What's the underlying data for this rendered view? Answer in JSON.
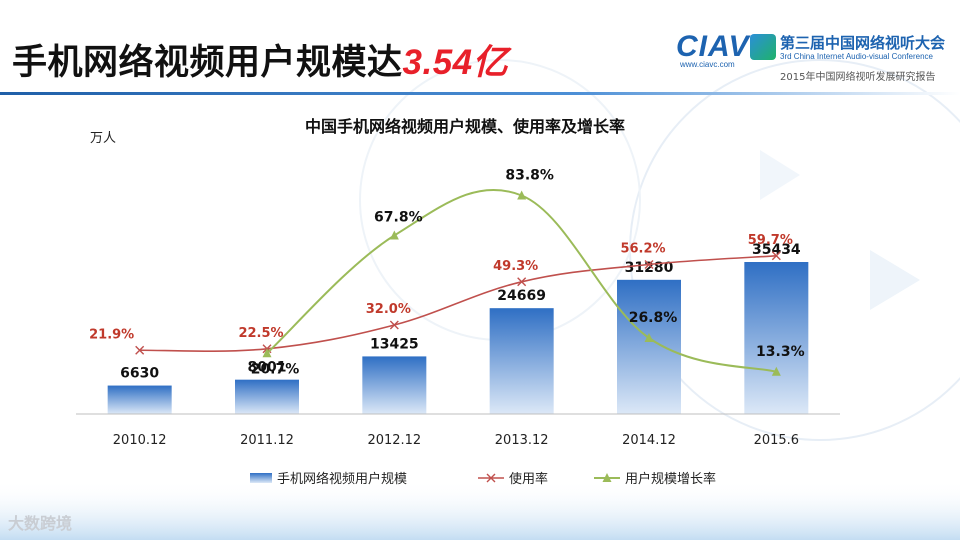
{
  "slide": {
    "title_main": "手机网络视频用户规模达",
    "title_highlight": "3.54亿"
  },
  "logo": {
    "mark": "CIAVC",
    "url": "www.ciavc.com",
    "name_cn": "第三届中国网络视听大会",
    "name_en": "3rd China Internet Audio-visual Conference",
    "report": "2015年中国网络视听发展研究报告"
  },
  "watermark": "大数跨境",
  "colors": {
    "bar_top": "#2f6fc4",
    "bar_bottom": "#dce8f7",
    "usage_line": "#c0504d",
    "growth_line": "#9bbb59",
    "title_accent": "#e8202a"
  },
  "chart_data": {
    "type": "bar",
    "title": "中国手机网络视频用户规模、使用率及增长率",
    "unit_label": "万人",
    "categories": [
      "2010.12",
      "2011.12",
      "2012.12",
      "2013.12",
      "2014.12",
      "2015.6"
    ],
    "ylim": [
      0,
      40000
    ],
    "grid": false,
    "legend_position": "bottom",
    "series": [
      {
        "name": "手机网络视频用户规模",
        "type": "bar",
        "values": [
          6630,
          8001,
          13425,
          24669,
          31280,
          35434
        ],
        "labels": [
          "6630",
          "8001",
          "13425",
          "24669",
          "31280",
          "35434"
        ]
      },
      {
        "name": "使用率",
        "type": "line",
        "marker": "x",
        "values": [
          21.9,
          22.5,
          32.0,
          49.3,
          56.2,
          59.7
        ],
        "labels": [
          "21.9%",
          "22.5%",
          "32.0%",
          "49.3%",
          "56.2%",
          "59.7%"
        ]
      },
      {
        "name": "用户规模增长率",
        "type": "line",
        "marker": "triangle",
        "x": [
          "2011.12",
          "2012.12",
          "2013.12",
          "2014.12",
          "2015.6"
        ],
        "values": [
          20.7,
          67.8,
          83.8,
          26.8,
          13.3
        ],
        "labels": [
          "20.7%",
          "67.8%",
          "83.8%",
          "26.8%",
          "13.3%"
        ]
      }
    ]
  }
}
